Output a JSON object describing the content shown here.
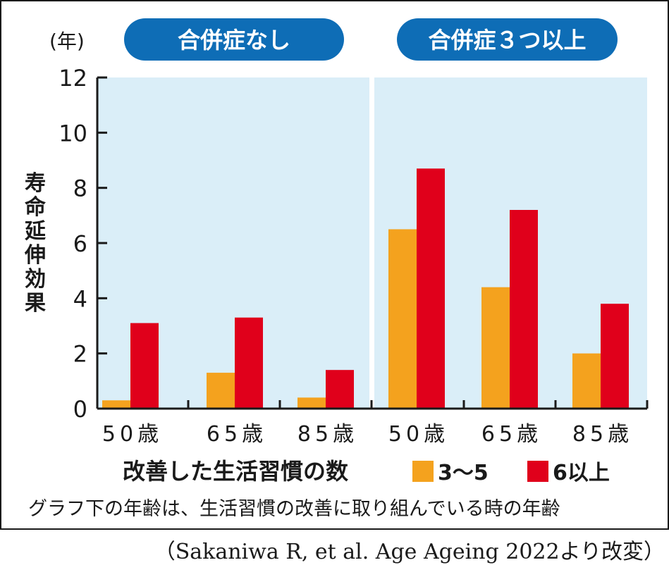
{
  "chart_data": {
    "type": "bar",
    "y_unit": "(年)",
    "ylabel": "寿命延伸効果",
    "xlabel": "改善した生活習慣の数",
    "ylim": [
      0,
      12
    ],
    "yticks": [
      "0",
      "2",
      "4",
      "6",
      "8",
      "10",
      "12"
    ],
    "grid": false,
    "legend_position": "bottom-right",
    "series_names": [
      "3～5",
      "6以上"
    ],
    "colors": {
      "s1": "#f4a21e",
      "s2": "#e0001b",
      "panel_bg": "#daeef8",
      "header_bg": "#0e6db6"
    },
    "panels": [
      {
        "title": "合併症なし",
        "categories": [
          "50歳",
          "65歳",
          "85歳"
        ],
        "series": [
          {
            "name": "3～5",
            "values": [
              0.3,
              1.3,
              0.4
            ]
          },
          {
            "name": "6以上",
            "values": [
              3.1,
              3.3,
              1.4
            ]
          }
        ]
      },
      {
        "title": "合併症３つ以上",
        "categories": [
          "50歳",
          "65歳",
          "85歳"
        ],
        "series": [
          {
            "name": "3～5",
            "values": [
              6.5,
              4.4,
              2.0
            ]
          },
          {
            "name": "6以上",
            "values": [
              8.7,
              7.2,
              3.8
            ]
          }
        ]
      }
    ]
  },
  "note": "グラフ下の年齢は、生活習慣の改善に取り組んでいる時の年齢",
  "source": "（Sakaniwa R, et al. Age Ageing 2022より改変）"
}
